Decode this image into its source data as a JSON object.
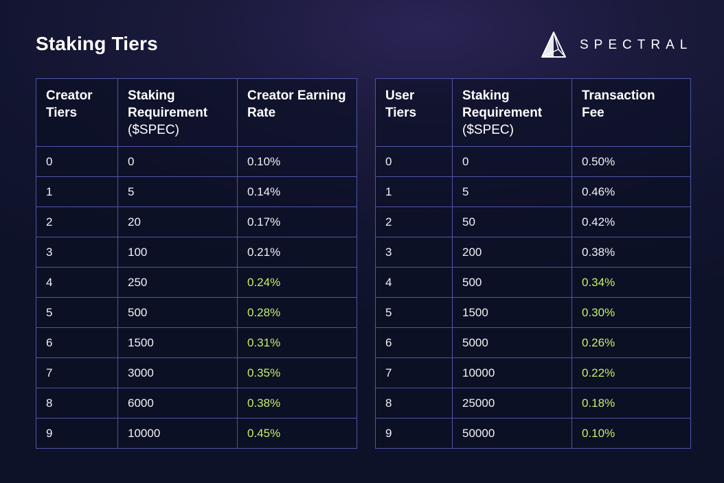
{
  "title": "Staking Tiers",
  "brand": {
    "name": "SPECTRAL",
    "logo": "prism-triangle-logo"
  },
  "colors": {
    "highlight": "#c4f06a",
    "border": "#5057a8"
  },
  "creator_table": {
    "headers": [
      {
        "line1": "Creator",
        "line2": "Tiers",
        "sub": ""
      },
      {
        "line1": "Staking",
        "line2": "Requirement",
        "sub": "($SPEC)"
      },
      {
        "line1": "Creator Earning",
        "line2": "Rate",
        "sub": ""
      }
    ],
    "rows": [
      {
        "tier": "0",
        "req": "0",
        "rate": "0.10%",
        "highlight": false
      },
      {
        "tier": "1",
        "req": "5",
        "rate": "0.14%",
        "highlight": false
      },
      {
        "tier": "2",
        "req": "20",
        "rate": "0.17%",
        "highlight": false
      },
      {
        "tier": "3",
        "req": "100",
        "rate": "0.21%",
        "highlight": false
      },
      {
        "tier": "4",
        "req": "250",
        "rate": "0.24%",
        "highlight": true
      },
      {
        "tier": "5",
        "req": "500",
        "rate": "0.28%",
        "highlight": true
      },
      {
        "tier": "6",
        "req": "1500",
        "rate": "0.31%",
        "highlight": true
      },
      {
        "tier": "7",
        "req": "3000",
        "rate": "0.35%",
        "highlight": true
      },
      {
        "tier": "8",
        "req": "6000",
        "rate": "0.38%",
        "highlight": true
      },
      {
        "tier": "9",
        "req": "10000",
        "rate": "0.45%",
        "highlight": true
      }
    ]
  },
  "user_table": {
    "headers": [
      {
        "line1": "User",
        "line2": "Tiers",
        "sub": ""
      },
      {
        "line1": "Staking",
        "line2": "Requirement",
        "sub": "($SPEC)"
      },
      {
        "line1": "Transaction",
        "line2": "Fee",
        "sub": ""
      }
    ],
    "rows": [
      {
        "tier": "0",
        "req": "0",
        "rate": "0.50%",
        "highlight": false
      },
      {
        "tier": "1",
        "req": "5",
        "rate": "0.46%",
        "highlight": false
      },
      {
        "tier": "2",
        "req": "50",
        "rate": "0.42%",
        "highlight": false
      },
      {
        "tier": "3",
        "req": "200",
        "rate": "0.38%",
        "highlight": false
      },
      {
        "tier": "4",
        "req": "500",
        "rate": "0.34%",
        "highlight": true
      },
      {
        "tier": "5",
        "req": "1500",
        "rate": "0.30%",
        "highlight": true
      },
      {
        "tier": "6",
        "req": "5000",
        "rate": "0.26%",
        "highlight": true
      },
      {
        "tier": "7",
        "req": "10000",
        "rate": "0.22%",
        "highlight": true
      },
      {
        "tier": "8",
        "req": "25000",
        "rate": "0.18%",
        "highlight": true
      },
      {
        "tier": "9",
        "req": "50000",
        "rate": "0.10%",
        "highlight": true
      }
    ]
  }
}
